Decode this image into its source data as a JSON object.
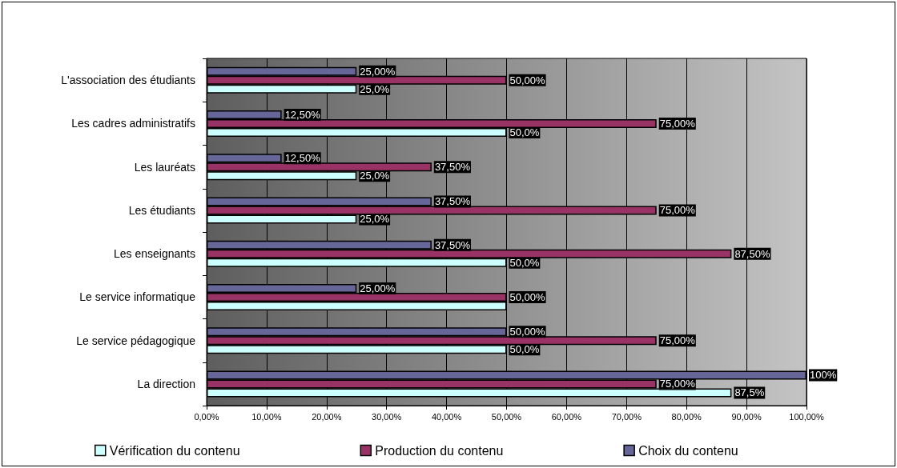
{
  "chart_data": {
    "type": "bar",
    "orientation": "horizontal",
    "categories": [
      "L'association des étudiants",
      "Les cadres administratifs",
      "Les lauréats",
      "Les étudiants",
      "Les enseignants",
      "Le service informatique",
      "Le service pédagogique",
      "La direction"
    ],
    "series": [
      {
        "name": "Vérification du contenu",
        "color": "#ccffff",
        "values": [
          25,
          50,
          25,
          25,
          50,
          50,
          50,
          87.5
        ],
        "value_labels": [
          "25,0%",
          "50,0%",
          "25,0%",
          "25,0%",
          "50,0%",
          null,
          "50,0%",
          "87,5%"
        ]
      },
      {
        "name": "Production du contenu",
        "color": "#993366",
        "values": [
          50,
          75,
          37.5,
          75,
          87.5,
          50,
          75,
          75
        ],
        "value_labels": [
          "50,00%",
          "75,00%",
          "37,50%",
          "75,00%",
          "87,50%",
          "50,00%",
          "75,00%",
          "75,00%"
        ]
      },
      {
        "name": "Choix du contenu",
        "color": "#666699",
        "values": [
          25,
          12.5,
          12.5,
          37.5,
          37.5,
          25,
          50,
          100
        ],
        "value_labels": [
          "25,00%",
          "12,50%",
          "12,50%",
          "37,50%",
          "37,50%",
          "25,00%",
          "50,00%",
          "100%"
        ]
      }
    ],
    "xlim": [
      0,
      100
    ],
    "xticks": [
      {
        "value": 0,
        "label": "0,00%"
      },
      {
        "value": 10,
        "label": "10,00%"
      },
      {
        "value": 20,
        "label": "20,00%"
      },
      {
        "value": 30,
        "label": "30,00%"
      },
      {
        "value": 40,
        "label": "40,00%"
      },
      {
        "value": 50,
        "label": "50,00%"
      },
      {
        "value": 60,
        "label": "60,00%"
      },
      {
        "value": 70,
        "label": "70,00%"
      },
      {
        "value": 80,
        "label": "80,00%"
      },
      {
        "value": 90,
        "label": "90,00%"
      },
      {
        "value": 100,
        "label": "100,00%"
      }
    ],
    "grid": "x",
    "legend": "bottom"
  }
}
